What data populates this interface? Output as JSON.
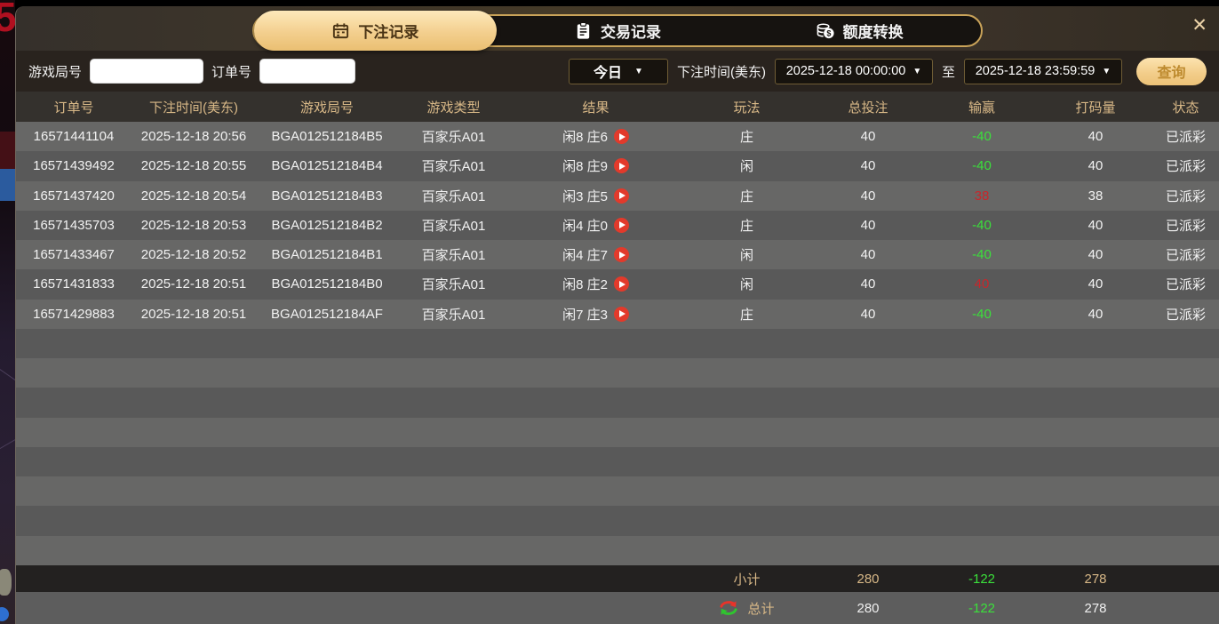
{
  "window": {
    "close_label": "✕"
  },
  "tabs": [
    {
      "label": "下注记录",
      "icon": "calendar-icon",
      "active": true
    },
    {
      "label": "交易记录",
      "icon": "clipboard-icon",
      "active": false
    },
    {
      "label": "额度转换",
      "icon": "coins-icon",
      "active": false
    }
  ],
  "filters": {
    "game_round_label": "游戏局号",
    "game_round_value": "",
    "order_no_label": "订单号",
    "order_no_value": "",
    "range_select_value": "今日",
    "bet_time_label": "下注时间(美东)",
    "start_time_value": "2025-12-18 00:00:00",
    "to_label": "至",
    "end_time_value": "2025-12-18 23:59:59",
    "query_button_label": "查询",
    "caret": "▼"
  },
  "table": {
    "headers": [
      "订单号",
      "下注时间(美东)",
      "游戏局号",
      "游戏类型",
      "结果",
      "玩法",
      "总投注",
      "输赢",
      "打码量",
      "状态"
    ],
    "rows": [
      {
        "order_no": "16571441104",
        "bet_time": "2025-12-18 20:56",
        "round": "BGA012512184B5",
        "game_type": "百家乐A01",
        "result": "闲8 庄6",
        "play": "庄",
        "total_bet": "40",
        "win_loss": "-40",
        "rolling": "40",
        "status": "已派彩"
      },
      {
        "order_no": "16571439492",
        "bet_time": "2025-12-18 20:55",
        "round": "BGA012512184B4",
        "game_type": "百家乐A01",
        "result": "闲8 庄9",
        "play": "闲",
        "total_bet": "40",
        "win_loss": "-40",
        "rolling": "40",
        "status": "已派彩"
      },
      {
        "order_no": "16571437420",
        "bet_time": "2025-12-18 20:54",
        "round": "BGA012512184B3",
        "game_type": "百家乐A01",
        "result": "闲3 庄5",
        "play": "庄",
        "total_bet": "40",
        "win_loss": "38",
        "rolling": "38",
        "status": "已派彩"
      },
      {
        "order_no": "16571435703",
        "bet_time": "2025-12-18 20:53",
        "round": "BGA012512184B2",
        "game_type": "百家乐A01",
        "result": "闲4 庄0",
        "play": "庄",
        "total_bet": "40",
        "win_loss": "-40",
        "rolling": "40",
        "status": "已派彩"
      },
      {
        "order_no": "16571433467",
        "bet_time": "2025-12-18 20:52",
        "round": "BGA012512184B1",
        "game_type": "百家乐A01",
        "result": "闲4 庄7",
        "play": "闲",
        "total_bet": "40",
        "win_loss": "-40",
        "rolling": "40",
        "status": "已派彩"
      },
      {
        "order_no": "16571431833",
        "bet_time": "2025-12-18 20:51",
        "round": "BGA012512184B0",
        "game_type": "百家乐A01",
        "result": "闲8 庄2",
        "play": "闲",
        "total_bet": "40",
        "win_loss": "40",
        "rolling": "40",
        "status": "已派彩"
      },
      {
        "order_no": "16571429883",
        "bet_time": "2025-12-18 20:51",
        "round": "BGA012512184AF",
        "game_type": "百家乐A01",
        "result": "闲7 庄3",
        "play": "庄",
        "total_bet": "40",
        "win_loss": "-40",
        "rolling": "40",
        "status": "已派彩"
      }
    ],
    "subtotal": {
      "label": "小计",
      "total_bet": "280",
      "win_loss": "-122",
      "rolling": "278"
    },
    "total": {
      "label": "总计",
      "total_bet": "280",
      "win_loss": "-122",
      "rolling": "278"
    }
  },
  "background": {
    "partial_digit": "5"
  },
  "colors": {
    "accent_gold": "#d3ab62",
    "header_text_gold": "#d8b887",
    "win_positive_red": "#c8262b",
    "loss_negative_green": "#3be03b",
    "row_light": "#676766",
    "row_dark": "#595959"
  }
}
